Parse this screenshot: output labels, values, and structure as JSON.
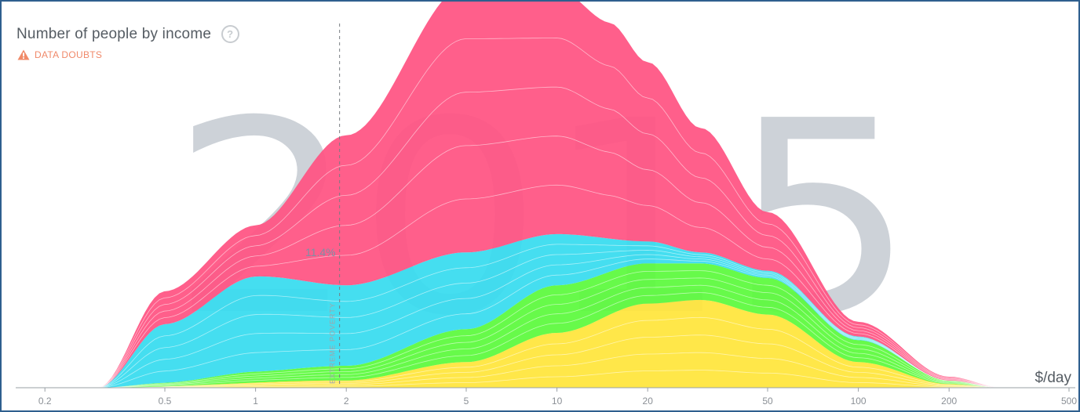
{
  "header": {
    "title": "Number of people by income",
    "help_icon": "question-icon",
    "warning_label": "DATA DOUBTS",
    "warning_icon": "warning-triangle-icon",
    "warning_color": "#f08a68"
  },
  "year_watermark": "2015",
  "poverty_line": {
    "value": 1.9,
    "label": "EXTREME POVERTY",
    "share_label": "11.4%"
  },
  "chart_data": {
    "type": "area",
    "title": "Number of people by income",
    "xlabel": "$/day",
    "x_scale": "log",
    "xlim": [
      0.16,
      500
    ],
    "x_ticks": [
      "0.2",
      "0.5",
      "1",
      "2",
      "5",
      "10",
      "20",
      "50",
      "100",
      "200",
      "500"
    ],
    "x_tick_values": [
      0.2,
      0.5,
      1,
      2,
      5,
      10,
      20,
      50,
      100,
      200,
      500
    ],
    "stacked": true,
    "series": [
      {
        "color": "#ffe53b",
        "x": [
          0.3,
          2,
          5,
          10,
          20,
          30,
          50,
          100,
          200,
          300
        ],
        "values": [
          0,
          0.02,
          0.07,
          0.15,
          0.23,
          0.24,
          0.2,
          0.07,
          0.01,
          0
        ]
      },
      {
        "color": "#5bfa3c",
        "x": [
          0.3,
          0.5,
          1,
          2,
          5,
          10,
          20,
          30,
          50,
          100,
          200,
          300
        ],
        "values": [
          0,
          0.01,
          0.03,
          0.04,
          0.09,
          0.13,
          0.11,
          0.1,
          0.1,
          0.06,
          0.01,
          0
        ]
      },
      {
        "color": "#37dcef",
        "x": [
          0.3,
          0.5,
          1,
          2,
          5,
          10,
          20,
          30,
          50,
          100,
          200,
          300
        ],
        "values": [
          0,
          0.16,
          0.26,
          0.22,
          0.21,
          0.14,
          0.06,
          0.03,
          0.02,
          0.01,
          0,
          0
        ]
      },
      {
        "color": "#ff5382",
        "x": [
          0.3,
          0.5,
          1,
          2,
          5,
          10,
          15,
          20,
          30,
          50,
          100,
          200,
          300
        ],
        "values": [
          0,
          0.09,
          0.14,
          0.41,
          0.73,
          0.67,
          0.59,
          0.49,
          0.34,
          0.16,
          0.04,
          0.01,
          0
        ]
      }
    ]
  }
}
